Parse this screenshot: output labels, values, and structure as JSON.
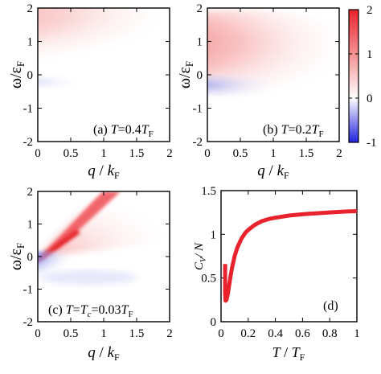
{
  "chart_data": [
    {
      "type": "heatmap",
      "panel": "a",
      "annotation": {
        "prefix": "(a) ",
        "var": "T",
        "eq": "=0.4",
        "unit": "T",
        "unit_sub": "F"
      },
      "xlabel": {
        "main": "q",
        "slash": " / ",
        "unit": "k",
        "unit_sub": "F"
      },
      "ylabel": {
        "main": "ω/ε",
        "sub": "F"
      },
      "xlim": [
        0,
        2
      ],
      "ylim": [
        -2,
        2
      ],
      "xticks": [
        "0",
        "0.5",
        "1",
        "1.5",
        "2"
      ],
      "yticks": [
        "2",
        "1",
        "0",
        "-1",
        "-2"
      ],
      "features": {
        "positive_lobe_omega": [
          0.5,
          2.0
        ],
        "negative_lobe_omega": [
          -0.4,
          0.0
        ],
        "negative_lobe_q_max": 0.8
      }
    },
    {
      "type": "heatmap",
      "panel": "b",
      "annotation": {
        "prefix": "(b) ",
        "var": "T",
        "eq": "=0.2",
        "unit": "T",
        "unit_sub": "F"
      },
      "xlabel": {
        "main": "q",
        "slash": " / ",
        "unit": "k",
        "unit_sub": "F"
      },
      "ylabel": {
        "main": "ω/ε",
        "sub": "F"
      },
      "xlim": [
        0,
        2
      ],
      "ylim": [
        -2,
        2
      ],
      "xticks": [
        "0",
        "0.5",
        "1",
        "1.5",
        "2"
      ],
      "yticks": [
        "2",
        "1",
        "0",
        "-1",
        "-2"
      ],
      "colorbar": {
        "range": [
          -1,
          2
        ],
        "ticks": [
          "2",
          "1",
          "0",
          "-1"
        ],
        "colors": {
          "pos": "#e8232d",
          "neg": "#2222e0",
          "zero": "#ffffff"
        }
      },
      "features": {
        "positive_lobe_omega": [
          0.3,
          2.0
        ],
        "negative_lobe_omega": [
          -0.6,
          0.0
        ],
        "negative_lobe_q_max": 0.9
      }
    },
    {
      "type": "heatmap",
      "panel": "c",
      "annotation": {
        "prefix": "(c) ",
        "var": "T",
        "eq": "=",
        "var2": "T",
        "var2_sub": "c",
        "eq2": "=0.03",
        "unit": "T",
        "unit_sub": "F"
      },
      "xlabel": {
        "main": "q",
        "slash": " / ",
        "unit": "k",
        "unit_sub": "F"
      },
      "ylabel": {
        "main": "ω/ε",
        "sub": "F"
      },
      "xlim": [
        0,
        2
      ],
      "ylim": [
        -2,
        2
      ],
      "xticks": [
        "0",
        "0.5",
        "1",
        "1.5",
        "2"
      ],
      "yticks": [
        "2",
        "1",
        "0",
        "-1",
        "-2"
      ],
      "features": {
        "sharp_positive_branch": "ω ≈ 2q from origin",
        "negative_lobe_omega": [
          -1.0,
          0.0
        ]
      }
    },
    {
      "type": "line",
      "panel": "d",
      "annotation": "(d)",
      "xlabel": {
        "main": "T",
        "slash": " / ",
        "unit": "T",
        "unit_sub": "F"
      },
      "ylabel": {
        "main": "C",
        "sub": "V",
        "tail": "/ N"
      },
      "xlim": [
        0,
        1
      ],
      "ylim": [
        0,
        1.5
      ],
      "xticks": [
        "0",
        "0.2",
        "0.4",
        "0.6",
        "0.8",
        "1"
      ],
      "yticks": [
        "1.5",
        "1",
        "0.5",
        "0"
      ],
      "color": "#e8232d",
      "series": [
        {
          "x": [
            0.03,
            0.03,
            0.033,
            0.04,
            0.05,
            0.06,
            0.07,
            0.08,
            0.1,
            0.12,
            0.15,
            0.18,
            0.2,
            0.25,
            0.3,
            0.35,
            0.4,
            0.5,
            0.6,
            0.7,
            0.8,
            0.9,
            1.0
          ],
          "values": [
            0.66,
            0.33,
            0.24,
            0.25,
            0.32,
            0.42,
            0.52,
            0.61,
            0.75,
            0.85,
            0.95,
            1.02,
            1.05,
            1.11,
            1.15,
            1.175,
            1.19,
            1.215,
            1.23,
            1.24,
            1.25,
            1.26,
            1.265
          ]
        }
      ]
    }
  ]
}
